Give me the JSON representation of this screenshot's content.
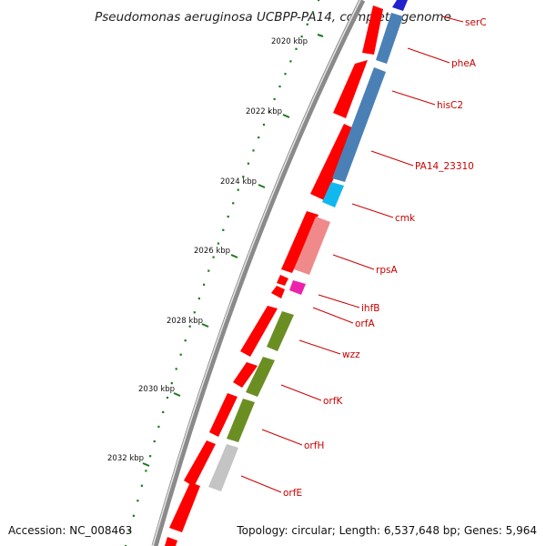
{
  "title": "Pseudomonas aeruginosa UCBPP-PA14, complete genome",
  "footer": {
    "accession": "Accession: NC_008463",
    "topology": "Topology: circular; Length: 6,537,648 bp; Genes: 5,964"
  },
  "ticks": [
    "2020 kbp",
    "2022 kbp",
    "2024 kbp",
    "2026 kbp",
    "2028 kbp",
    "2030 kbp",
    "2032 kbp"
  ],
  "genes": [
    "serC",
    "pheA",
    "hisC2",
    "PA14_23310",
    "cmk",
    "rpsA",
    "ihfB",
    "orfA",
    "wzz",
    "orfK",
    "orfH",
    "orfE"
  ],
  "colors": {
    "backbone": "#888888",
    "cds": "#ff0000",
    "label": "#cc0000",
    "tick": "#1a7a1a",
    "blue_dark": "#2222cc",
    "steel_blue": "#4a80b5",
    "cyan": "#11b8f0",
    "pink": "#f08a8a",
    "magenta": "#ee22aa",
    "olive": "#6b8e23",
    "gray": "#c4c4c4"
  }
}
